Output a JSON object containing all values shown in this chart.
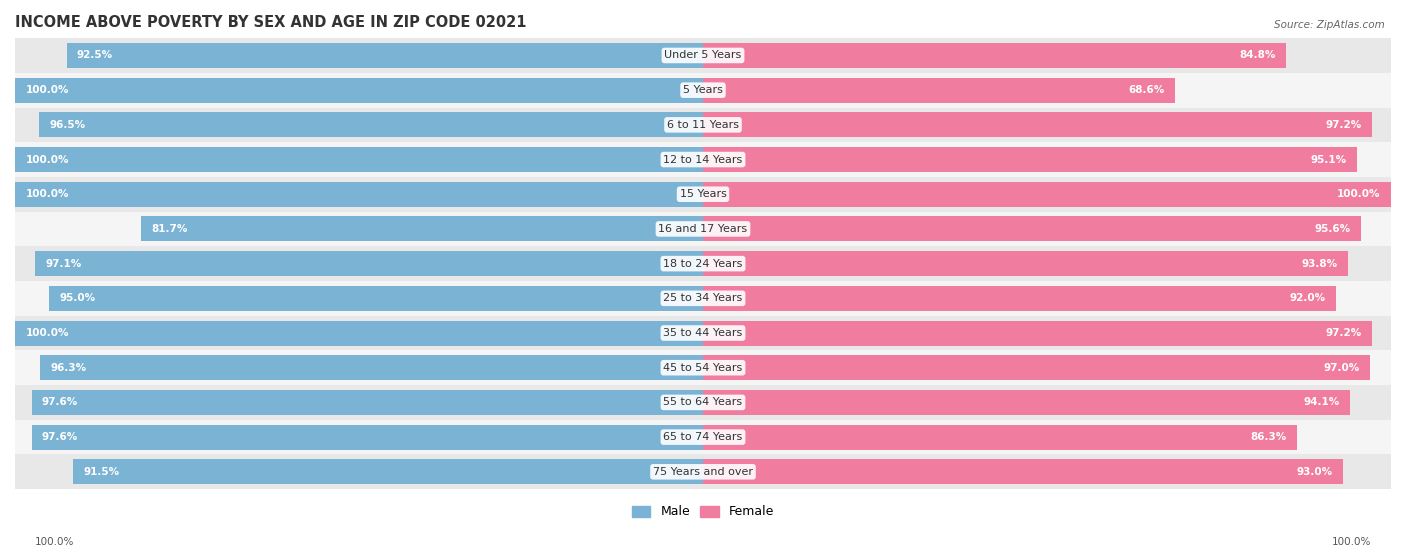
{
  "title": "INCOME ABOVE POVERTY BY SEX AND AGE IN ZIP CODE 02021",
  "source": "Source: ZipAtlas.com",
  "categories": [
    "Under 5 Years",
    "5 Years",
    "6 to 11 Years",
    "12 to 14 Years",
    "15 Years",
    "16 and 17 Years",
    "18 to 24 Years",
    "25 to 34 Years",
    "35 to 44 Years",
    "45 to 54 Years",
    "55 to 64 Years",
    "65 to 74 Years",
    "75 Years and over"
  ],
  "male_values": [
    92.5,
    100.0,
    96.5,
    100.0,
    100.0,
    81.7,
    97.1,
    95.0,
    100.0,
    96.3,
    97.6,
    97.6,
    91.5
  ],
  "female_values": [
    84.8,
    68.6,
    97.2,
    95.1,
    100.0,
    95.6,
    93.8,
    92.0,
    97.2,
    97.0,
    94.1,
    86.3,
    93.0
  ],
  "male_color": "#7ab3d4",
  "male_color_light": "#c5dff0",
  "female_color": "#f07ca0",
  "female_color_light": "#f9c0d0",
  "male_label": "Male",
  "female_label": "Female",
  "background_color": "#ffffff",
  "row_bg_even": "#e8e8e8",
  "row_bg_odd": "#f5f5f5",
  "title_fontsize": 10.5,
  "label_fontsize": 8.0,
  "value_fontsize": 7.5,
  "source_fontsize": 7.5,
  "footer_value_left": "100.0%",
  "footer_value_right": "100.0%"
}
